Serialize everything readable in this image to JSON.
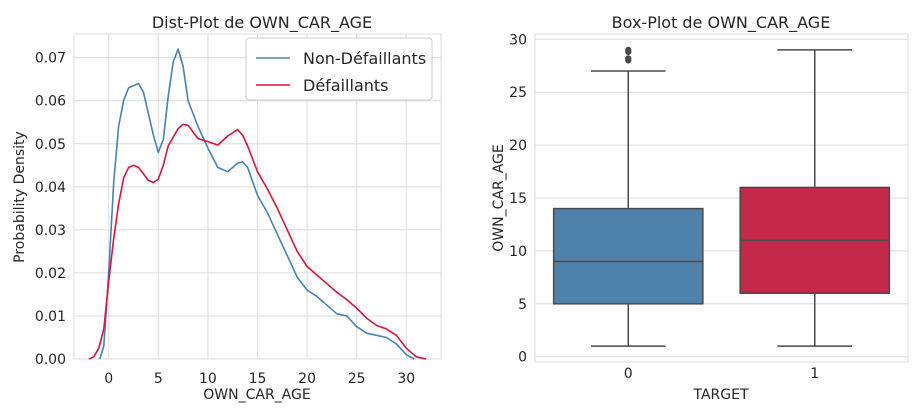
{
  "colors": {
    "non_defaillants": "#4682B4",
    "defaillants": "#DC143C",
    "box_edge": "#4a4a4a",
    "grid": "#dcdcdc"
  },
  "chart_data": [
    {
      "type": "line",
      "title": "Dist-Plot de OWN_CAR_AGE",
      "xlabel": "OWN_CAR_AGE",
      "ylabel": "Probability Density",
      "xlim": [
        -3.5,
        33.5
      ],
      "ylim": [
        0,
        0.0755
      ],
      "xticks": [
        0,
        5,
        10,
        15,
        20,
        25,
        30
      ],
      "xtick_labels": [
        "0",
        "5",
        "10",
        "15",
        "20",
        "25",
        "30"
      ],
      "yticks": [
        0.0,
        0.01,
        0.02,
        0.03,
        0.04,
        0.05,
        0.06,
        0.07
      ],
      "ytick_labels": [
        "0.00",
        "0.01",
        "0.02",
        "0.03",
        "0.04",
        "0.05",
        "0.06",
        "0.07"
      ],
      "grid": true,
      "legend_position": "top-right",
      "series": [
        {
          "name": "Non-Défaillants",
          "color": "#4682B4",
          "points": [
            [
              -0.9,
              0
            ],
            [
              -0.5,
              0.003
            ],
            [
              0,
              0.02
            ],
            [
              0.5,
              0.041
            ],
            [
              1,
              0.054
            ],
            [
              1.5,
              0.06
            ],
            [
              2,
              0.063
            ],
            [
              3,
              0.064
            ],
            [
              3.5,
              0.062
            ],
            [
              4,
              0.057
            ],
            [
              4.5,
              0.052
            ],
            [
              5,
              0.048
            ],
            [
              5.5,
              0.051
            ],
            [
              6,
              0.061
            ],
            [
              6.5,
              0.069
            ],
            [
              7,
              0.072
            ],
            [
              7.5,
              0.068
            ],
            [
              8,
              0.06
            ],
            [
              9,
              0.054
            ],
            [
              10,
              0.049
            ],
            [
              11,
              0.0445
            ],
            [
              12,
              0.0435
            ],
            [
              13,
              0.0455
            ],
            [
              13.5,
              0.0458
            ],
            [
              14,
              0.0445
            ],
            [
              15,
              0.038
            ],
            [
              16,
              0.034
            ],
            [
              17,
              0.029
            ],
            [
              18,
              0.024
            ],
            [
              19,
              0.019
            ],
            [
              20,
              0.016
            ],
            [
              21,
              0.0145
            ],
            [
              22,
              0.0125
            ],
            [
              23,
              0.0105
            ],
            [
              24,
              0.01
            ],
            [
              25,
              0.0075
            ],
            [
              26,
              0.006
            ],
            [
              27,
              0.0055
            ],
            [
              28,
              0.005
            ],
            [
              29,
              0.0035
            ],
            [
              30,
              0.001
            ],
            [
              30.8,
              0
            ]
          ]
        },
        {
          "name": "Défaillants",
          "color": "#DC143C",
          "points": [
            [
              -2,
              0
            ],
            [
              -1.5,
              0.0005
            ],
            [
              -1,
              0.0025
            ],
            [
              -0.5,
              0.007
            ],
            [
              0,
              0.018
            ],
            [
              0.5,
              0.028
            ],
            [
              1,
              0.036
            ],
            [
              1.5,
              0.042
            ],
            [
              2,
              0.0445
            ],
            [
              2.5,
              0.045
            ],
            [
              3,
              0.0445
            ],
            [
              4,
              0.0415
            ],
            [
              4.5,
              0.041
            ],
            [
              5,
              0.0418
            ],
            [
              5.5,
              0.045
            ],
            [
              6,
              0.0495
            ],
            [
              7,
              0.0535
            ],
            [
              7.5,
              0.0545
            ],
            [
              8,
              0.0543
            ],
            [
              9,
              0.0512
            ],
            [
              10,
              0.0505
            ],
            [
              11,
              0.0497
            ],
            [
              12,
              0.0518
            ],
            [
              13,
              0.0533
            ],
            [
              13.5,
              0.052
            ],
            [
              14,
              0.0495
            ],
            [
              15,
              0.0435
            ],
            [
              16,
              0.0395
            ],
            [
              17,
              0.035
            ],
            [
              18,
              0.03
            ],
            [
              19,
              0.025
            ],
            [
              20,
              0.0215
            ],
            [
              21,
              0.0195
            ],
            [
              22,
              0.0175
            ],
            [
              23,
              0.0155
            ],
            [
              24,
              0.0138
            ],
            [
              25,
              0.0118
            ],
            [
              26,
              0.0095
            ],
            [
              27,
              0.0078
            ],
            [
              28,
              0.007
            ],
            [
              29,
              0.0055
            ],
            [
              30,
              0.0025
            ],
            [
              31,
              0.0005
            ],
            [
              32,
              0
            ]
          ]
        }
      ]
    },
    {
      "type": "box",
      "title": "Box-Plot de OWN_CAR_AGE",
      "xlabel": "TARGET",
      "ylabel": "OWN_CAR_AGE",
      "ylim": [
        -0.5,
        30.5
      ],
      "yticks": [
        0,
        5,
        10,
        15,
        20,
        25,
        30
      ],
      "ytick_labels": [
        "0",
        "5",
        "10",
        "15",
        "20",
        "25",
        "30"
      ],
      "categories": [
        "0",
        "1"
      ],
      "grid": true,
      "boxes": [
        {
          "category": "0",
          "color": "#4F82AA",
          "whisker_low": 1,
          "q1": 5,
          "median": 9,
          "q3": 14,
          "whisker_high": 27,
          "outliers": [
            28,
            28.2,
            28.8,
            29
          ]
        },
        {
          "category": "1",
          "color": "#C5294A",
          "whisker_low": 1,
          "q1": 6,
          "median": 11,
          "q3": 16,
          "whisker_high": 29,
          "outliers": []
        }
      ]
    }
  ]
}
